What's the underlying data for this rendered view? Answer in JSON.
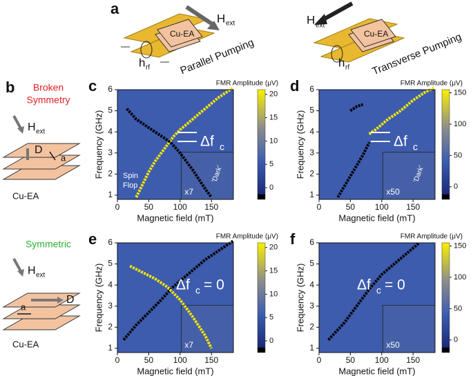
{
  "figure": {
    "a": {
      "label": "a",
      "left": {
        "material": "Cu-EA",
        "field": "H",
        "field_sub": "ext",
        "rf": "h",
        "rf_sub": "rf",
        "caption": "Parallel Pumping"
      },
      "right": {
        "material": "Cu-EA",
        "field": "H",
        "field_sub": "ext",
        "rf": "h",
        "rf_sub": "rf",
        "caption": "Transverse Pumping"
      }
    },
    "b": {
      "label": "b",
      "top": {
        "title": [
          "Broken",
          "Symmetry"
        ],
        "field": "H",
        "field_sub": "ext",
        "vector": "D",
        "lattice": "a",
        "material": "Cu-EA"
      },
      "bottom": {
        "title": [
          "Symmetric"
        ],
        "field": "H",
        "field_sub": "ext",
        "vector": "D",
        "lattice": "a",
        "material": "Cu-EA"
      }
    }
  },
  "chart_data": [
    {
      "type": "heatmap",
      "panel": "c",
      "xlabel": "Magnetic field (mT)",
      "ylabel": "Frequency (GHz)",
      "xlim": [
        0,
        185
      ],
      "ylim": [
        0.8,
        6
      ],
      "xticks": [
        0,
        50,
        100,
        150
      ],
      "yticks": [
        1,
        2,
        3,
        4,
        5,
        6
      ],
      "colorbar": {
        "title": "FMR Amplitude (μV)",
        "lim": [
          -2.5,
          21
        ],
        "ticks": [
          0,
          5,
          10,
          15,
          20
        ]
      },
      "series": [
        {
          "color": "#f5e800",
          "x": [
            30,
            40,
            50,
            60,
            70,
            80,
            90,
            100,
            120,
            140,
            160,
            185
          ],
          "values": [
            0.9,
            1.5,
            2.1,
            2.6,
            3.0,
            3.4,
            3.8,
            4.1,
            4.6,
            5.1,
            5.6,
            6.1
          ]
        },
        {
          "color": "#000000",
          "x": [
            15,
            30,
            50,
            70,
            85,
            100,
            120,
            140,
            150
          ],
          "values": [
            5.1,
            4.6,
            4.2,
            3.8,
            3.5,
            3.0,
            2.2,
            1.3,
            0.9
          ]
        }
      ],
      "delta": "Δf",
      "delta_sub": "c",
      "mult": "x7",
      "dark": "'Dark'",
      "spin": [
        "Spin",
        "Flop"
      ]
    },
    {
      "type": "heatmap",
      "panel": "d",
      "xlabel": "Magnetic field (mT)",
      "ylabel": "Frequency (GHz)",
      "xlim": [
        0,
        185
      ],
      "ylim": [
        0.8,
        6
      ],
      "xticks": [
        0,
        50,
        100,
        150
      ],
      "yticks": [
        1,
        2,
        3,
        4,
        5,
        6
      ],
      "colorbar": {
        "title": "FMR Amplitude (μV)",
        "lim": [
          -20,
          155
        ],
        "ticks": [
          0,
          50,
          100,
          150
        ]
      },
      "series": [
        {
          "color": "#000000",
          "x": [
            30,
            50,
            70,
            80
          ],
          "values": [
            0.9,
            1.9,
            2.9,
            3.5
          ]
        },
        {
          "color": "#f5e800",
          "x": [
            80,
            90,
            110,
            130,
            150,
            170,
            185
          ],
          "values": [
            3.9,
            4.1,
            4.6,
            5.0,
            5.5,
            5.9,
            6.1
          ]
        },
        {
          "color": "#000000",
          "x": [
            50,
            60,
            70
          ],
          "values": [
            5.0,
            5.2,
            5.3
          ]
        }
      ],
      "delta": "Δf",
      "delta_sub": "c",
      "mult": "x50",
      "dark": "'Dark'"
    },
    {
      "type": "heatmap",
      "panel": "e",
      "xlabel": "Magnetic field (mT)",
      "ylabel": "Frequency (GHz)",
      "xlim": [
        0,
        185
      ],
      "ylim": [
        0.8,
        6
      ],
      "xticks": [
        0,
        50,
        100,
        150
      ],
      "yticks": [
        1,
        2,
        3,
        4,
        5,
        6
      ],
      "colorbar": {
        "title": "FMR Amplitude (μV)",
        "lim": [
          -2.5,
          21
        ],
        "ticks": [
          0,
          5,
          10,
          15,
          20
        ]
      },
      "series": [
        {
          "color": "#000000",
          "x": [
            10,
            30,
            50,
            70,
            85,
            100,
            120,
            140,
            160,
            185
          ],
          "values": [
            1.4,
            2.1,
            2.7,
            3.3,
            3.8,
            4.2,
            4.7,
            5.2,
            5.6,
            6.1
          ]
        },
        {
          "color": "#f5e800",
          "x": [
            20,
            40,
            60,
            80,
            100,
            120,
            140,
            150
          ],
          "values": [
            4.9,
            4.6,
            4.3,
            3.9,
            3.3,
            2.5,
            1.6,
            1.0
          ]
        }
      ],
      "delta": "Δf",
      "delta_sub": "c",
      "delta_eq": "= 0",
      "mult": "x7"
    },
    {
      "type": "heatmap",
      "panel": "f",
      "xlabel": "Magnetic field (mT)",
      "ylabel": "Frequency (GHz)",
      "xlim": [
        0,
        185
      ],
      "ylim": [
        0.8,
        6
      ],
      "xticks": [
        0,
        50,
        100,
        150
      ],
      "yticks": [
        1,
        2,
        3,
        4,
        5,
        6
      ],
      "colorbar": {
        "title": "FMR Amplitude (μV)",
        "lim": [
          -20,
          155
        ],
        "ticks": [
          0,
          50,
          100,
          150
        ]
      },
      "series": [
        {
          "color": "#000000",
          "x": [
            15,
            40,
            60,
            80,
            100,
            120,
            140,
            160
          ],
          "values": [
            1.4,
            2.2,
            3.0,
            3.8,
            4.5,
            5.0,
            5.5,
            6.0
          ]
        }
      ],
      "delta": "Δf",
      "delta_sub": "c",
      "delta_eq": "= 0",
      "mult": "x50"
    }
  ]
}
